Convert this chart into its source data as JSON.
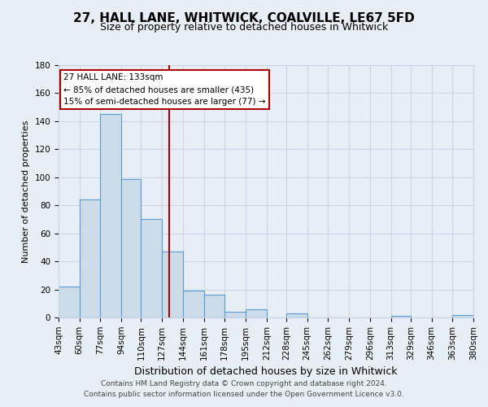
{
  "title": "27, HALL LANE, WHITWICK, COALVILLE, LE67 5FD",
  "subtitle": "Size of property relative to detached houses in Whitwick",
  "xlabel": "Distribution of detached houses by size in Whitwick",
  "ylabel": "Number of detached properties",
  "bin_edges": [
    43,
    60,
    77,
    94,
    110,
    127,
    144,
    161,
    178,
    195,
    212,
    228,
    245,
    262,
    279,
    296,
    313,
    329,
    346,
    363,
    380
  ],
  "bin_labels": [
    "43sqm",
    "60sqm",
    "77sqm",
    "94sqm",
    "110sqm",
    "127sqm",
    "144sqm",
    "161sqm",
    "178sqm",
    "195sqm",
    "212sqm",
    "228sqm",
    "245sqm",
    "262sqm",
    "279sqm",
    "296sqm",
    "313sqm",
    "329sqm",
    "346sqm",
    "363sqm",
    "380sqm"
  ],
  "counts": [
    22,
    84,
    145,
    99,
    70,
    47,
    19,
    16,
    4,
    6,
    0,
    3,
    0,
    0,
    0,
    0,
    1,
    0,
    0,
    2
  ],
  "bar_color": "#ccdce8",
  "bar_edge_color": "#5b9bd5",
  "vline_x": 133,
  "vline_color": "#aa0000",
  "annotation_line1": "27 HALL LANE: 133sqm",
  "annotation_line2": "← 85% of detached houses are smaller (435)",
  "annotation_line3": "15% of semi-detached houses are larger (77) →",
  "annotation_box_facecolor": "#ffffff",
  "annotation_box_edgecolor": "#aa0000",
  "ylim": [
    0,
    180
  ],
  "yticks": [
    0,
    20,
    40,
    60,
    80,
    100,
    120,
    140,
    160,
    180
  ],
  "grid_color": "#c8d4e4",
  "footer1": "Contains HM Land Registry data © Crown copyright and database right 2024.",
  "footer2": "Contains public sector information licensed under the Open Government Licence v3.0.",
  "background_color": "#e8eef6",
  "title_fontsize": 11,
  "subtitle_fontsize": 9,
  "ylabel_fontsize": 8,
  "xlabel_fontsize": 9,
  "tick_fontsize": 7.5,
  "footer_fontsize": 6.5
}
